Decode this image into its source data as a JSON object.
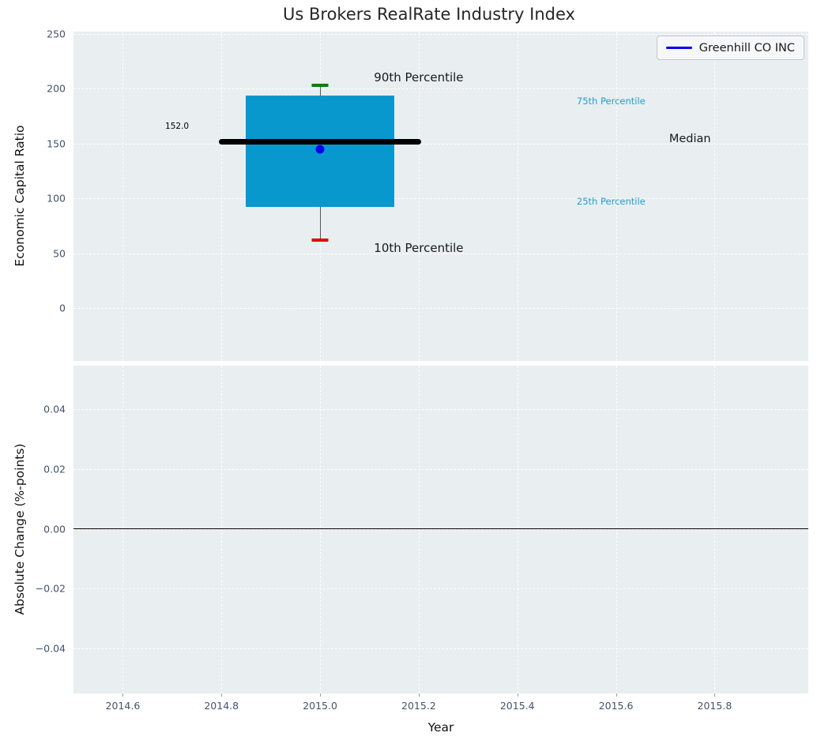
{
  "figure": {
    "title": "Us Brokers RealRate Industry Index"
  },
  "legend": {
    "label": "Greenhill CO INC"
  },
  "style": {
    "plot_bg": "#e9eef0",
    "grid_color": "#ffffff",
    "tick_color": "#42526b",
    "text_color": "#1a1a1a",
    "box_fill": "#0898ce",
    "median_color": "#000000",
    "p90_cap_color": "#008000",
    "p10_cap_color": "#e50000",
    "marker_color": "#0000ee",
    "legend_line_color": "#0000ee",
    "percentile_label_color": "#1ba0cf",
    "whisker_color": "#555555",
    "zero_line_color": "#000000"
  },
  "chart_data": [
    {
      "type": "boxplot",
      "panel": "top",
      "title": "Us Brokers RealRate Industry Index",
      "xlabel": "Year",
      "ylabel": "Economic Capital Ratio",
      "xlim": [
        2014.5,
        2015.99
      ],
      "ylim": [
        -48,
        252
      ],
      "grid": true,
      "legend_entry": "Greenhill CO INC",
      "legend_position": "upper right",
      "x_tick_values": [
        2014.6,
        2014.8,
        2015.0,
        2015.2,
        2015.4,
        2015.6,
        2015.8
      ],
      "x_tick_labels": [
        "2014.6",
        "2014.8",
        "2015.0",
        "2015.2",
        "2015.4",
        "2015.6",
        "2015.8"
      ],
      "y_tick_values": [
        0,
        50,
        100,
        150,
        200,
        250
      ],
      "y_tick_labels": [
        "0",
        "50",
        "100",
        "150",
        "200",
        "250"
      ],
      "box": {
        "company": "Greenhill CO INC",
        "year": 2015.0,
        "p10": 62,
        "p25": 92,
        "median": 152.0,
        "p75": 194,
        "p90": 203,
        "company_value": 145,
        "box_half_width": 0.15,
        "median_half_width": 0.205
      },
      "annotations": [
        {
          "name": "median-value-label",
          "text": "152.0",
          "x": 2014.71,
          "y": 166,
          "color": "#000000",
          "size": 10.5
        },
        {
          "name": "p90-label",
          "text": "90th Percentile",
          "x": 2015.2,
          "y": 210,
          "color": "#1a1a1a",
          "size": 15
        },
        {
          "name": "p10-label",
          "text": "10th Percentile",
          "x": 2015.2,
          "y": 55,
          "color": "#1a1a1a",
          "size": 15
        },
        {
          "name": "p75-label",
          "text": "75th Percentile",
          "x": 2015.59,
          "y": 189,
          "color": "#1ba0cf",
          "size": 11.5
        },
        {
          "name": "p25-label",
          "text": "25th Percentile",
          "x": 2015.59,
          "y": 97,
          "color": "#1ba0cf",
          "size": 11.5
        },
        {
          "name": "median-label",
          "text": "Median",
          "x": 2015.75,
          "y": 154,
          "color": "#1a1a1a",
          "size": 14.5
        }
      ]
    },
    {
      "type": "line",
      "panel": "bottom",
      "xlabel": "Year",
      "ylabel": "Absolute Change (%-points)",
      "xlim": [
        2014.5,
        2015.99
      ],
      "ylim": [
        -0.055,
        0.0545
      ],
      "grid": true,
      "zero_line": 0.0,
      "x_tick_values": [
        2014.6,
        2014.8,
        2015.0,
        2015.2,
        2015.4,
        2015.6,
        2015.8
      ],
      "x_tick_labels": [
        "2014.6",
        "2014.8",
        "2015.0",
        "2015.2",
        "2015.4",
        "2015.6",
        "2015.8"
      ],
      "y_tick_values": [
        0.04,
        0.02,
        0.0,
        -0.02,
        -0.04
      ],
      "y_tick_labels": [
        "0.04",
        "0.02",
        "0.00",
        "−0.02",
        "−0.04"
      ],
      "series": []
    }
  ]
}
